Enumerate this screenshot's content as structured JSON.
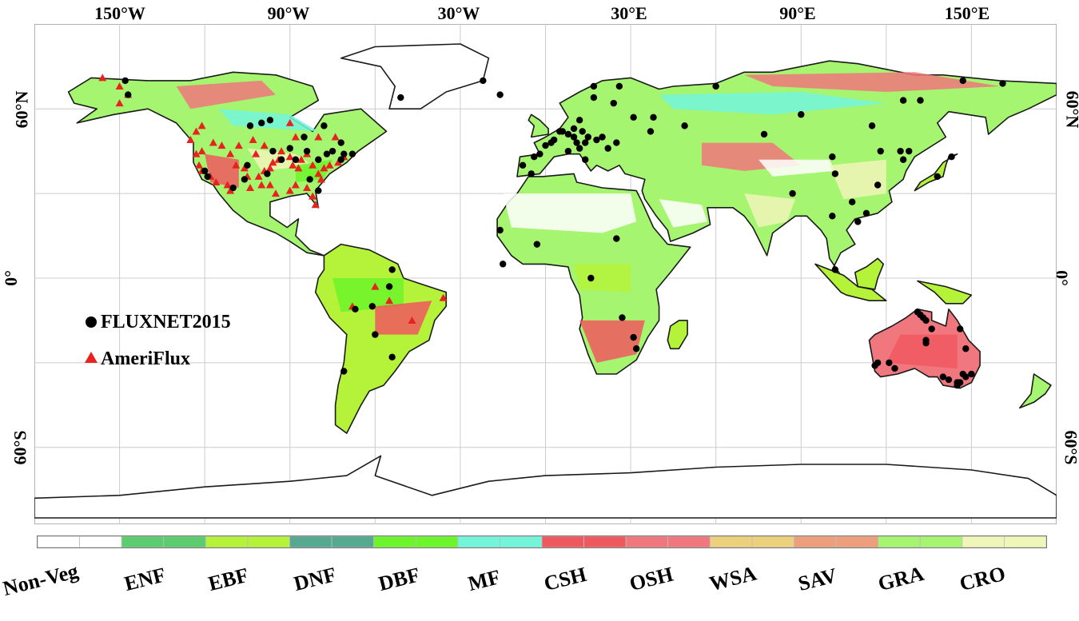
{
  "lon_labels": [
    "150°W",
    "90°W",
    "30°W",
    "30°E",
    "90°E",
    "150°E"
  ],
  "lat_labels_left": [
    "60°N",
    "0°",
    "60°S"
  ],
  "lat_labels_right": [
    "60°N",
    "0°",
    "60°S"
  ],
  "legend": {
    "fluxnet": {
      "label": "FLUXNET2015",
      "color": "#000000",
      "marker": "circle"
    },
    "ameriflux": {
      "label": "AmeriFlux",
      "color": "#e8231f",
      "marker": "triangle"
    }
  },
  "colorbar": [
    {
      "label": "Non-Veg",
      "color": "#ffffff"
    },
    {
      "label": "ENF",
      "color": "#5ccd6e"
    },
    {
      "label": "EBF",
      "color": "#b5f23a"
    },
    {
      "label": "DNF",
      "color": "#54a98f"
    },
    {
      "label": "DBF",
      "color": "#6cf52a"
    },
    {
      "label": "MF",
      "color": "#73f5da"
    },
    {
      "label": "CSH",
      "color": "#f0585f"
    },
    {
      "label": "OSH",
      "color": "#f0777d"
    },
    {
      "label": "WSA",
      "color": "#ecd07c"
    },
    {
      "label": "SAV",
      "color": "#ec9f7a"
    },
    {
      "label": "GRA",
      "color": "#a6f570"
    },
    {
      "label": "CRO",
      "color": "#f0f5b8"
    }
  ],
  "colors": {
    "ocean": "#ffffff",
    "coast": "#1a1a1a",
    "grid": "#c8c8c8",
    "frame": "#9a9a9a"
  },
  "fluxnet_sites": [
    [
      -148,
      70
    ],
    [
      -147,
      65
    ],
    [
      -105,
      40
    ],
    [
      -106,
      35
    ],
    [
      -110,
      32
    ],
    [
      -120,
      38
    ],
    [
      -119,
      36
    ],
    [
      -96,
      45
    ],
    [
      -90,
      46
    ],
    [
      -84,
      45
    ],
    [
      -80,
      42
    ],
    [
      -72,
      42
    ],
    [
      -75,
      45
    ],
    [
      -88,
      42
    ],
    [
      -93,
      42
    ],
    [
      -98,
      37
    ],
    [
      -83,
      35
    ],
    [
      -80,
      31
    ],
    [
      -100,
      55
    ],
    [
      -104,
      54
    ],
    [
      -97,
      56
    ],
    [
      -85,
      50
    ],
    [
      -72,
      48
    ],
    [
      -77,
      44
    ],
    [
      -71,
      44
    ],
    [
      -68,
      44
    ],
    [
      -78,
      54
    ],
    [
      -51,
      64
    ],
    [
      -16,
      65
    ],
    [
      -22,
      70
    ],
    [
      24,
      62
    ],
    [
      26,
      68
    ],
    [
      17,
      64
    ],
    [
      17,
      68
    ],
    [
      12,
      56
    ],
    [
      8,
      51
    ],
    [
      10,
      50
    ],
    [
      11,
      48
    ],
    [
      5,
      52
    ],
    [
      2,
      48
    ],
    [
      -2,
      44
    ],
    [
      -8,
      40
    ],
    [
      -5,
      37
    ],
    [
      -4,
      43
    ],
    [
      0,
      47
    ],
    [
      12,
      46
    ],
    [
      14,
      42
    ],
    [
      8,
      45
    ],
    [
      15,
      50
    ],
    [
      18,
      49
    ],
    [
      20,
      50
    ],
    [
      6,
      52
    ],
    [
      10,
      53
    ],
    [
      13,
      52
    ],
    [
      14,
      48
    ],
    [
      3,
      49
    ],
    [
      22,
      46
    ],
    [
      25,
      48
    ],
    [
      31,
      57
    ],
    [
      38,
      57
    ],
    [
      37,
      52
    ],
    [
      49,
      54
    ],
    [
      60,
      68
    ],
    [
      90,
      58
    ],
    [
      77,
      51
    ],
    [
      115,
      54
    ],
    [
      126,
      63
    ],
    [
      147,
      70
    ],
    [
      161,
      69
    ],
    [
      132,
      63
    ],
    [
      118,
      45
    ],
    [
      125,
      45
    ],
    [
      128,
      45
    ],
    [
      126,
      42
    ],
    [
      138,
      36
    ],
    [
      143,
      43
    ],
    [
      102,
      37
    ],
    [
      87,
      30
    ],
    [
      101,
      43
    ],
    [
      101,
      22
    ],
    [
      110,
      20
    ],
    [
      117,
      33
    ],
    [
      108,
      27
    ],
    [
      113,
      23
    ],
    [
      102,
      3
    ],
    [
      -55,
      -3
    ],
    [
      -54,
      3
    ],
    [
      -61,
      -10
    ],
    [
      -67,
      -11
    ],
    [
      -54,
      -28
    ],
    [
      -71,
      -33
    ],
    [
      -60,
      -20
    ],
    [
      -3,
      12
    ],
    [
      -15,
      5
    ],
    [
      -16,
      17
    ],
    [
      25,
      14
    ],
    [
      16,
      0
    ],
    [
      27,
      -14
    ],
    [
      32,
      -25
    ],
    [
      31,
      -21
    ],
    [
      131,
      -12
    ],
    [
      132,
      -13
    ],
    [
      133,
      -14
    ],
    [
      134,
      -15
    ],
    [
      136,
      -18
    ],
    [
      134,
      -23
    ],
    [
      134,
      -22
    ],
    [
      117,
      -30
    ],
    [
      116,
      -31
    ],
    [
      121,
      -30
    ],
    [
      146,
      -18
    ],
    [
      148,
      -25
    ],
    [
      142,
      -36
    ],
    [
      145,
      -37
    ],
    [
      147,
      -34
    ],
    [
      150,
      -34
    ],
    [
      145,
      -38
    ],
    [
      140,
      -35
    ],
    [
      146,
      -37
    ],
    [
      148,
      -35
    ],
    [
      123,
      -32
    ]
  ],
  "ameriflux_sites": [
    [
      -150,
      68
    ],
    [
      -147,
      65
    ],
    [
      -156,
      71
    ],
    [
      -150,
      62
    ],
    [
      -121,
      45
    ],
    [
      -123,
      44
    ],
    [
      -122,
      40
    ],
    [
      -121,
      38
    ],
    [
      -118,
      36
    ],
    [
      -116,
      34
    ],
    [
      -112,
      33
    ],
    [
      -111,
      31
    ],
    [
      -109,
      40
    ],
    [
      -106,
      39
    ],
    [
      -105,
      36
    ],
    [
      -104,
      32
    ],
    [
      -101,
      36
    ],
    [
      -99,
      38
    ],
    [
      -97,
      39
    ],
    [
      -96,
      41
    ],
    [
      -94,
      42
    ],
    [
      -93,
      45
    ],
    [
      -90,
      43
    ],
    [
      -89,
      40
    ],
    [
      -87,
      39
    ],
    [
      -86,
      42
    ],
    [
      -84,
      44
    ],
    [
      -82,
      40
    ],
    [
      -80,
      37
    ],
    [
      -79,
      35
    ],
    [
      -78,
      39
    ],
    [
      -76,
      40
    ],
    [
      -73,
      41
    ],
    [
      -71,
      43
    ],
    [
      -90,
      31
    ],
    [
      -88,
      33
    ],
    [
      -84,
      32
    ],
    [
      -82,
      29
    ],
    [
      -81,
      26
    ],
    [
      -95,
      30
    ],
    [
      -97,
      33
    ],
    [
      -100,
      33
    ],
    [
      -102,
      44
    ],
    [
      -99,
      47
    ],
    [
      -108,
      47
    ],
    [
      -114,
      47
    ],
    [
      -117,
      48
    ],
    [
      -111,
      44
    ],
    [
      -103,
      49
    ],
    [
      -125,
      49
    ],
    [
      -123,
      52
    ],
    [
      -121,
      54
    ],
    [
      -90,
      55
    ],
    [
      -88,
      50
    ],
    [
      -74,
      50
    ],
    [
      -80,
      50
    ],
    [
      -60,
      -3
    ],
    [
      -55,
      -8
    ],
    [
      -36,
      -7
    ],
    [
      -47,
      -15
    ],
    [
      -68,
      -10
    ]
  ]
}
